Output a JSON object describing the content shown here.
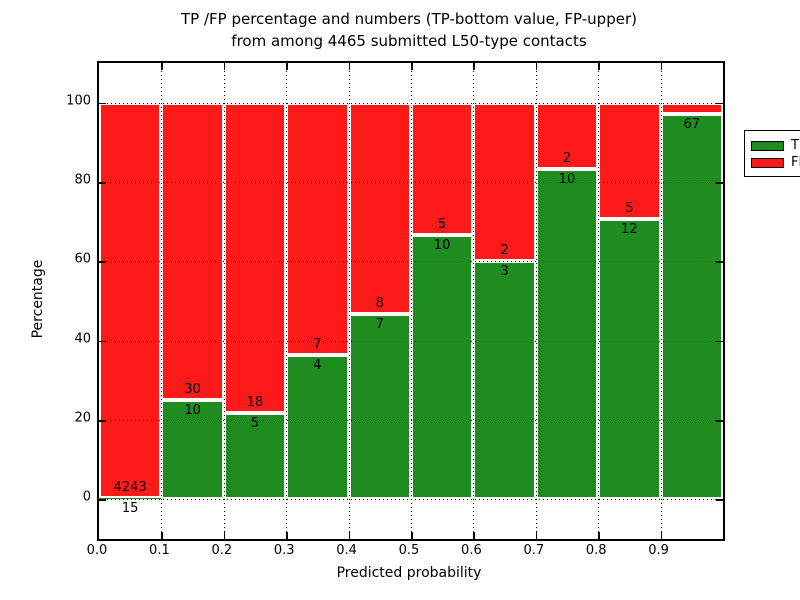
{
  "title": {
    "line1": "TP /FP percentage and numbers (TP-bottom value, FP-upper)",
    "line2": "from among 4465 submitted L50-type contacts"
  },
  "axes": {
    "xlabel": "Predicted probability",
    "ylabel": "Percentage",
    "x_tick_labels": [
      "0.0",
      "0.1",
      "0.2",
      "0.3",
      "0.4",
      "0.5",
      "0.6",
      "0.7",
      "0.8",
      "0.9"
    ],
    "y_tick_labels": [
      "0",
      "20",
      "40",
      "60",
      "80",
      "100"
    ]
  },
  "legend": {
    "items": [
      {
        "label": "TP",
        "color": "#1e8c1e"
      },
      {
        "label": "FP",
        "color": "#ff1a1a"
      }
    ]
  },
  "colors": {
    "tp_green": "#1e8c1e",
    "fp_red": "#ff1a1a",
    "grid": "#000000"
  },
  "chart_data": {
    "type": "bar",
    "subtype": "stacked-percentage-histogram",
    "title": "TP /FP percentage and numbers (TP-bottom value, FP-upper) from among 4465 submitted L50-type contacts",
    "xlabel": "Predicted probability",
    "ylabel": "Percentage",
    "xlim": [
      0.0,
      1.0
    ],
    "ylim": [
      -10,
      110
    ],
    "y_ticks": [
      0,
      20,
      40,
      60,
      80,
      100
    ],
    "x_ticks": [
      0.0,
      0.1,
      0.2,
      0.3,
      0.4,
      0.5,
      0.6,
      0.7,
      0.8,
      0.9
    ],
    "grid": "dotted",
    "legend_position": "upper-right",
    "bin_starts": [
      0.0,
      0.1,
      0.2,
      0.3,
      0.4,
      0.5,
      0.6,
      0.7,
      0.8,
      0.9
    ],
    "bin_width": 0.1,
    "total_submitted": 4465,
    "series": [
      {
        "name": "TP",
        "counts": [
          15,
          10,
          5,
          4,
          7,
          10,
          3,
          10,
          12,
          67
        ],
        "pct": [
          0.35,
          25.0,
          21.74,
          36.36,
          46.67,
          66.67,
          60.0,
          83.33,
          70.59,
          97.1
        ]
      },
      {
        "name": "FP",
        "counts": [
          4243,
          30,
          18,
          7,
          8,
          5,
          2,
          2,
          5,
          null
        ],
        "pct": [
          99.65,
          75.0,
          78.26,
          63.64,
          53.33,
          33.33,
          40.0,
          16.67,
          29.41,
          2.9
        ]
      }
    ],
    "bar_labels": {
      "fp": [
        "4243",
        "30",
        "18",
        "7",
        "8",
        "5",
        "2",
        "2",
        "5",
        ""
      ],
      "tp": [
        "15",
        "10",
        "5",
        "4",
        "7",
        "10",
        "3",
        "10",
        "12",
        "67"
      ]
    }
  }
}
